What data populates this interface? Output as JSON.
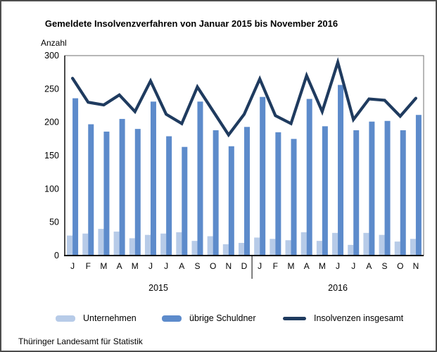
{
  "title": "Gemeldete Insolvenzverfahren von Januar 2015 bis November 2016",
  "y_axis_title": "Anzahl",
  "source": "Thüringer Landesamt für Statistik",
  "colors": {
    "unternehmen": "#B7CBE8",
    "uebrige_schuldner": "#5D8BCB",
    "insgesamt_line": "#1F3B5F",
    "axis": "#000000",
    "frame": "#6f6f6f",
    "text": "#000000",
    "figure_border": "#4d4d4d"
  },
  "legend": {
    "items": [
      {
        "label": "Unternehmen",
        "swatch": "bar"
      },
      {
        "label": "übrige Schuldner",
        "swatch": "bar"
      },
      {
        "label": "Insolvenzen insgesamt",
        "swatch": "line"
      }
    ]
  },
  "chart_data": {
    "type": "bar",
    "title": "Gemeldete Insolvenzverfahren von Januar 2015 bis November 2016",
    "xlabel": "",
    "ylabel": "Anzahl",
    "ylim": [
      0,
      300
    ],
    "y_ticks": [
      0,
      50,
      100,
      150,
      200,
      250,
      300
    ],
    "grid": false,
    "legend_position": "bottom",
    "categories": [
      "J",
      "F",
      "M",
      "A",
      "M",
      "J",
      "J",
      "A",
      "S",
      "O",
      "N",
      "D",
      "J",
      "F",
      "M",
      "A",
      "M",
      "J",
      "J",
      "A",
      "S",
      "O",
      "N"
    ],
    "x_groups": [
      {
        "label": "2015",
        "count": 12
      },
      {
        "label": "2016",
        "count": 11
      }
    ],
    "series": [
      {
        "name": "Unternehmen",
        "kind": "bar",
        "color": "#B7CBE8",
        "values": [
          30,
          33,
          40,
          36,
          26,
          31,
          33,
          35,
          22,
          29,
          17,
          19,
          27,
          25,
          23,
          35,
          22,
          34,
          16,
          34,
          31,
          21,
          25
        ]
      },
      {
        "name": "übrige Schuldner",
        "kind": "bar",
        "color": "#5D8BCB",
        "values": [
          236,
          197,
          186,
          205,
          190,
          231,
          179,
          163,
          231,
          188,
          164,
          193,
          238,
          185,
          175,
          235,
          194,
          256,
          188,
          201,
          202,
          188,
          211
        ]
      },
      {
        "name": "Insolvenzen insgesamt",
        "kind": "line",
        "color": "#1F3B5F",
        "values": [
          266,
          230,
          226,
          241,
          216,
          262,
          212,
          198,
          253,
          217,
          181,
          212,
          265,
          210,
          198,
          270,
          216,
          290,
          204,
          235,
          233,
          209,
          236
        ]
      }
    ]
  }
}
